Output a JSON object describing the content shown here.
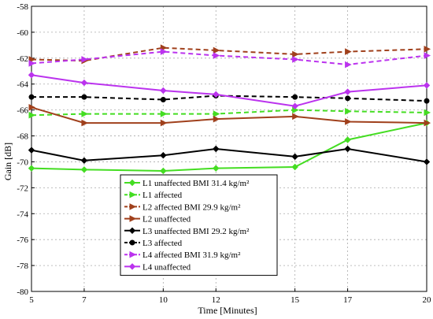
{
  "chart_data": {
    "type": "line",
    "xlabel": "Time [Minutes]",
    "ylabel": "Gain [dB]",
    "x": [
      5,
      7,
      10,
      12,
      15,
      17,
      20
    ],
    "xlim": [
      5,
      20
    ],
    "ylim": [
      -80,
      -58
    ],
    "xticks": [
      5,
      7,
      10,
      12,
      15,
      17,
      20
    ],
    "yticks": [
      -80,
      -78,
      -76,
      -74,
      -72,
      -70,
      -68,
      -66,
      -64,
      -62,
      -60,
      -58
    ],
    "grid": true,
    "legend_position": "bottom-center",
    "series": [
      {
        "name": "L1 unaffected BMI 31.4 kg/m²",
        "color": "#44dd22",
        "dash": "solid",
        "marker": "diamond",
        "values": [
          -70.5,
          -70.6,
          -70.7,
          -70.5,
          -70.4,
          -68.3,
          -67.0
        ]
      },
      {
        "name": "L1 affected",
        "color": "#44dd22",
        "dash": "dashed",
        "marker": "arrow-right",
        "values": [
          -66.4,
          -66.3,
          -66.3,
          -66.3,
          -66.0,
          -66.1,
          -66.2
        ]
      },
      {
        "name": "L2 affected BMI 29.9 kg/m²",
        "color": "#a0401c",
        "dash": "dashed",
        "marker": "arrow-right",
        "values": [
          -62.1,
          -62.2,
          -61.2,
          -61.4,
          -61.7,
          -61.5,
          -61.3
        ]
      },
      {
        "name": "L2 unaffected",
        "color": "#a0401c",
        "dash": "solid",
        "marker": "arrow-right",
        "values": [
          -65.8,
          -67.0,
          -67.0,
          -66.7,
          -66.5,
          -66.9,
          -67.0
        ]
      },
      {
        "name": "L3 unaffected BMI 29.2 kg/m²",
        "color": "#000000",
        "dash": "solid",
        "marker": "diamond",
        "values": [
          -69.1,
          -69.9,
          -69.5,
          -69.0,
          -69.6,
          -69.0,
          -70.0
        ]
      },
      {
        "name": "L3 affected",
        "color": "#000000",
        "dash": "dashed",
        "marker": "dot",
        "values": [
          -65.0,
          -65.0,
          -65.2,
          -64.9,
          -65.0,
          -65.1,
          -65.3
        ]
      },
      {
        "name": "L4 affected BMI 31.9 kg/m²",
        "color": "#bb33ee",
        "dash": "dashed",
        "marker": "arrow-right",
        "values": [
          -62.4,
          -62.1,
          -61.5,
          -61.8,
          -62.1,
          -62.5,
          -61.8
        ]
      },
      {
        "name": "L4 unaffected",
        "color": "#bb33ee",
        "dash": "solid",
        "marker": "diamond",
        "values": [
          -63.3,
          -63.9,
          -64.5,
          -64.8,
          -65.7,
          -64.6,
          -64.1
        ]
      }
    ]
  }
}
